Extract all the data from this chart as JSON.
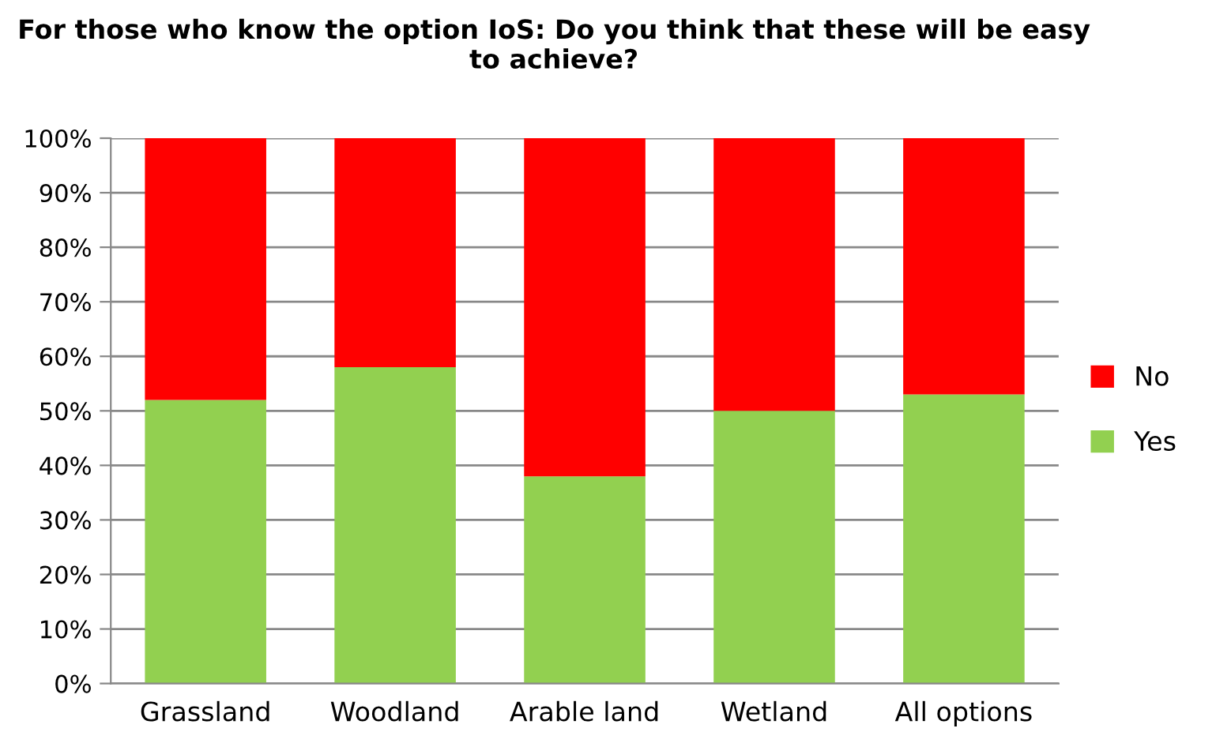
{
  "chart_data": {
    "type": "bar",
    "title": "For those who know the option IoS: Do you think that these will be easy to achieve?",
    "categories": [
      "Grassland",
      "Woodland",
      "Arable land",
      "Wetland",
      "All options"
    ],
    "stacked": true,
    "series": [
      {
        "name": "Yes",
        "color": "#92d050",
        "values": [
          52,
          58,
          38,
          50,
          53
        ]
      },
      {
        "name": "No",
        "color": "#ff0000",
        "values": [
          48,
          42,
          62,
          50,
          47
        ]
      }
    ],
    "ylim": [
      0,
      100
    ],
    "yticks": [
      {
        "value": 0,
        "label": "0%"
      },
      {
        "value": 10,
        "label": "10%"
      },
      {
        "value": 20,
        "label": "20%"
      },
      {
        "value": 30,
        "label": "30%"
      },
      {
        "value": 40,
        "label": "40%"
      },
      {
        "value": 50,
        "label": "50%"
      },
      {
        "value": 60,
        "label": "60%"
      },
      {
        "value": 70,
        "label": "70%"
      },
      {
        "value": 80,
        "label": "80%"
      },
      {
        "value": 90,
        "label": "90%"
      },
      {
        "value": 100,
        "label": "100%"
      }
    ],
    "grid": "y",
    "legend": "right"
  }
}
